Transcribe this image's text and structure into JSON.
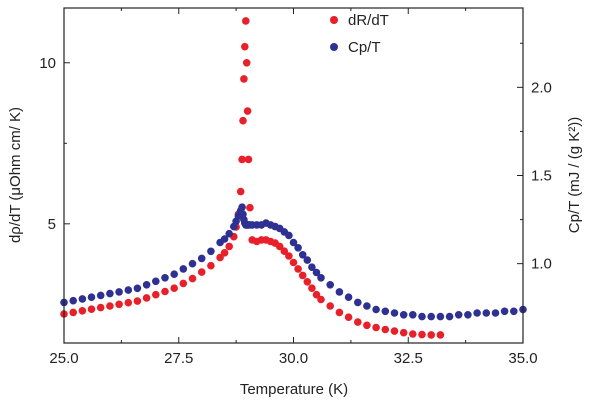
{
  "chart_data": {
    "type": "scatter",
    "xlabel": "Temperature (K)",
    "ylabel_left": "dρ/dT (μOhm cm/ K)",
    "ylabel_right": "Cp/T (mJ / (g K²))",
    "xlim": [
      25.0,
      35.0
    ],
    "ylim_left": [
      1.3,
      11.7
    ],
    "ylim_right": [
      0.55,
      2.45
    ],
    "x_ticks": [
      "25.0",
      "27.5",
      "30.0",
      "32.5",
      "35.0"
    ],
    "y_left_ticks": [
      "5",
      "10"
    ],
    "y_right_ticks": [
      "1.0",
      "1.5",
      "2.0"
    ],
    "legend_position": "top-center",
    "grid": false,
    "series": [
      {
        "name": "dR/dT",
        "axis": "left",
        "color": "#e8202a",
        "x": [
          25.0,
          25.2,
          25.4,
          25.6,
          25.8,
          26.0,
          26.2,
          26.4,
          26.6,
          26.8,
          27.0,
          27.2,
          27.4,
          27.6,
          27.8,
          28.0,
          28.2,
          28.4,
          28.5,
          28.6,
          28.7,
          28.75,
          28.8,
          28.85,
          28.88,
          28.9,
          28.92,
          28.94,
          28.96,
          28.98,
          29.0,
          29.02,
          29.05,
          29.1,
          29.2,
          29.3,
          29.4,
          29.5,
          29.6,
          29.7,
          29.8,
          29.9,
          30.0,
          30.1,
          30.2,
          30.3,
          30.4,
          30.5,
          30.6,
          30.8,
          31.0,
          31.2,
          31.4,
          31.6,
          31.8,
          32.0,
          32.2,
          32.4,
          32.6,
          32.8,
          33.0,
          33.2
        ],
        "y": [
          2.2,
          2.25,
          2.3,
          2.35,
          2.4,
          2.45,
          2.5,
          2.55,
          2.6,
          2.7,
          2.8,
          2.9,
          3.0,
          3.15,
          3.3,
          3.5,
          3.7,
          3.95,
          4.1,
          4.3,
          4.6,
          4.9,
          5.3,
          6.0,
          7.0,
          8.2,
          9.5,
          10.5,
          11.3,
          10.0,
          8.5,
          7.0,
          5.5,
          4.5,
          4.45,
          4.5,
          4.5,
          4.45,
          4.4,
          4.3,
          4.15,
          4.0,
          3.8,
          3.6,
          3.4,
          3.2,
          3.0,
          2.8,
          2.65,
          2.45,
          2.25,
          2.1,
          1.95,
          1.85,
          1.78,
          1.72,
          1.67,
          1.62,
          1.58,
          1.56,
          1.55,
          1.55
        ]
      },
      {
        "name": "Cp/T",
        "axis": "right",
        "color": "#2e3192",
        "x": [
          25.0,
          25.2,
          25.4,
          25.6,
          25.8,
          26.0,
          26.2,
          26.4,
          26.6,
          26.8,
          27.0,
          27.2,
          27.4,
          27.6,
          27.8,
          28.0,
          28.2,
          28.4,
          28.5,
          28.6,
          28.7,
          28.75,
          28.8,
          28.85,
          28.88,
          28.9,
          28.92,
          28.94,
          28.96,
          28.98,
          29.0,
          29.02,
          29.05,
          29.1,
          29.2,
          29.3,
          29.4,
          29.5,
          29.6,
          29.7,
          29.8,
          29.9,
          30.0,
          30.1,
          30.2,
          30.3,
          30.4,
          30.5,
          30.6,
          30.8,
          31.0,
          31.2,
          31.4,
          31.6,
          31.8,
          32.0,
          32.2,
          32.4,
          32.6,
          32.8,
          33.0,
          33.2,
          33.4,
          33.6,
          33.8,
          34.0,
          34.2,
          34.4,
          34.6,
          34.8,
          35.0
        ],
        "y": [
          0.78,
          0.79,
          0.8,
          0.81,
          0.82,
          0.83,
          0.84,
          0.85,
          0.86,
          0.88,
          0.9,
          0.92,
          0.94,
          0.97,
          1.0,
          1.03,
          1.07,
          1.12,
          1.14,
          1.17,
          1.21,
          1.24,
          1.27,
          1.3,
          1.32,
          1.28,
          1.25,
          1.23,
          1.22,
          1.22,
          1.22,
          1.22,
          1.22,
          1.22,
          1.22,
          1.22,
          1.23,
          1.22,
          1.21,
          1.2,
          1.18,
          1.16,
          1.12,
          1.09,
          1.05,
          1.02,
          0.98,
          0.95,
          0.92,
          0.88,
          0.84,
          0.81,
          0.78,
          0.76,
          0.74,
          0.73,
          0.72,
          0.71,
          0.71,
          0.7,
          0.7,
          0.7,
          0.7,
          0.71,
          0.71,
          0.72,
          0.72,
          0.72,
          0.73,
          0.73,
          0.74
        ]
      }
    ]
  }
}
